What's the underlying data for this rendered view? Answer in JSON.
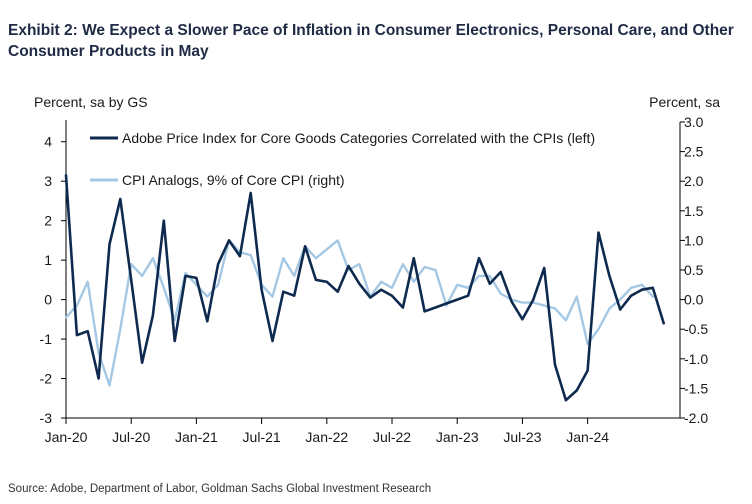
{
  "title": "Exhibit 2: We Expect a Slower Pace of Inflation in Consumer Electronics, Personal Care, and Other Consumer Products in May",
  "source": "Source: Adobe, Department of Labor, Goldman Sachs Global Investment Research",
  "chart_data": {
    "type": "line",
    "left_axis_label": "Percent, sa by GS",
    "right_axis_label": "Percent, sa",
    "ylim_left": [
      -3,
      4.5
    ],
    "yticks_left": [
      "-3",
      "-2",
      "-1",
      "0",
      "1",
      "2",
      "3",
      "4"
    ],
    "ylim_right": [
      -2.0,
      3.0
    ],
    "yticks_right": [
      "-2.0",
      "-1.5",
      "-1.0",
      "-0.5",
      "0.0",
      "0.5",
      "1.0",
      "1.5",
      "2.0",
      "2.5",
      "3.0"
    ],
    "x_ticks": [
      "Jan-20",
      "Jul-20",
      "Jan-21",
      "Jul-21",
      "Jan-22",
      "Jul-22",
      "Jan-23",
      "Jul-23",
      "Jan-24"
    ],
    "x_start": "2020-01",
    "series": [
      {
        "name": "Adobe Price Index for Core Goods Categories Correlated with the CPIs (left)",
        "axis": "left",
        "color": "#0f2a4f",
        "values": [
          3.15,
          -0.9,
          -0.8,
          -2.0,
          1.4,
          2.55,
          0.5,
          -1.6,
          -0.4,
          2.0,
          -1.05,
          0.6,
          0.55,
          -0.55,
          0.9,
          1.5,
          1.1,
          2.7,
          0.25,
          -1.05,
          0.2,
          0.1,
          1.35,
          0.5,
          0.45,
          0.2,
          0.85,
          0.4,
          0.05,
          0.25,
          0.1,
          -0.2,
          1.05,
          -0.3,
          -0.2,
          -0.1,
          0.0,
          0.1,
          1.05,
          0.4,
          0.7,
          -0.05,
          -0.5,
          0.0,
          0.8,
          -1.65,
          -2.55,
          -2.3,
          -1.8,
          1.7,
          0.6,
          -0.25,
          0.1,
          0.25,
          0.3,
          -0.6
        ]
      },
      {
        "name": "CPI Analogs, 9% of Core CPI (right)",
        "axis": "right",
        "color": "#a4c8e4",
        "values": [
          -0.3,
          -0.1,
          0.3,
          -0.9,
          -1.45,
          -0.5,
          0.6,
          0.4,
          0.7,
          0.2,
          -0.35,
          0.45,
          0.25,
          0.05,
          0.25,
          1.0,
          0.8,
          0.75,
          0.25,
          0.05,
          0.7,
          0.4,
          0.9,
          0.7,
          0.85,
          1.0,
          0.5,
          0.6,
          0.05,
          0.3,
          0.2,
          0.6,
          0.3,
          0.55,
          0.5,
          -0.1,
          0.25,
          0.2,
          0.4,
          0.4,
          0.1,
          0.0,
          -0.05,
          -0.05,
          -0.1,
          -0.15,
          -0.35,
          0.05,
          -0.75,
          -0.5,
          -0.15,
          0.0,
          0.2,
          0.25,
          0.05
        ]
      }
    ]
  }
}
